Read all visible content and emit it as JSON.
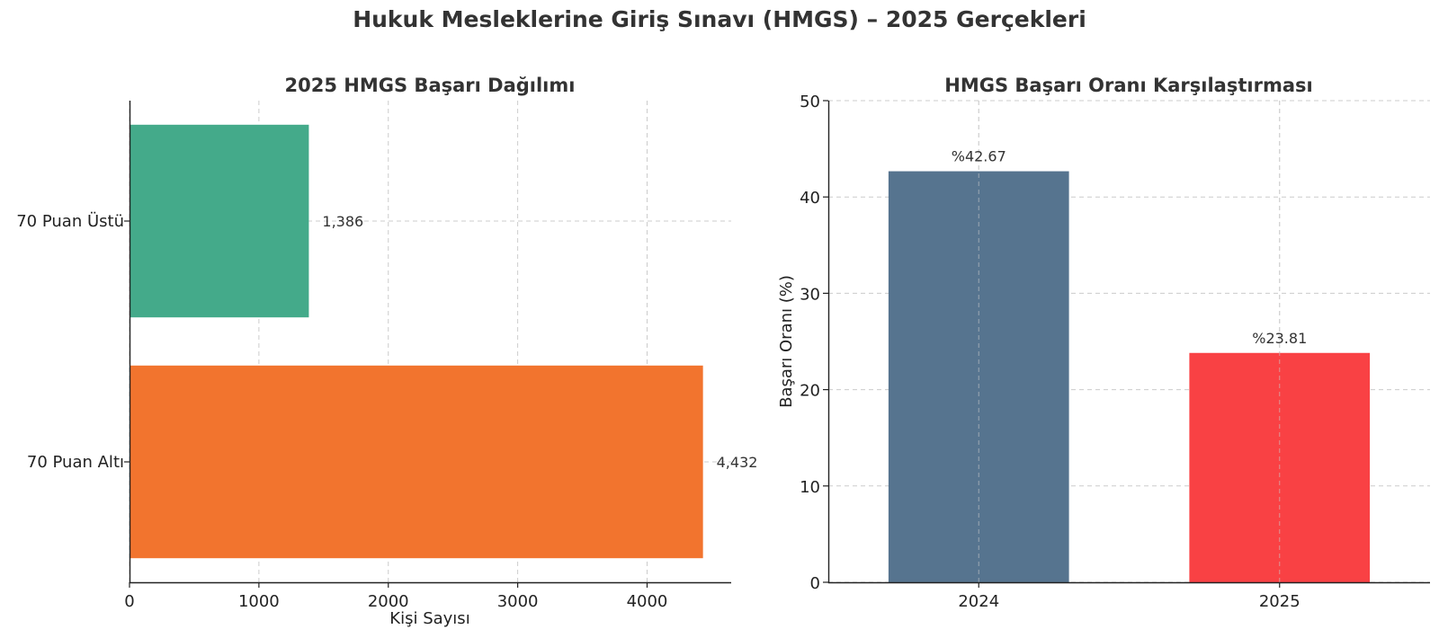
{
  "figure": {
    "title": "Hukuk Mesleklerine Giriş Sınavı (HMGS) – 2025 Gerçekleri"
  },
  "chart_data": [
    {
      "type": "bar",
      "orientation": "horizontal",
      "title": "2025 HMGS Başarı Dağılımı",
      "xlabel": "Kişi Sayısı",
      "ylabel": "",
      "categories": [
        "70 Puan Üstü",
        "70 Puan Altı"
      ],
      "values": [
        1386,
        4432
      ],
      "value_labels": [
        "1,386",
        "4,432"
      ],
      "colors": [
        "#44aa8a",
        "#f2742e"
      ],
      "xlim": [
        0,
        4650
      ],
      "xticks": [
        0,
        1000,
        2000,
        3000,
        4000
      ],
      "xtick_labels": [
        "0",
        "1000",
        "2000",
        "3000",
        "4000"
      ],
      "grid": true
    },
    {
      "type": "bar",
      "orientation": "vertical",
      "title": "HMGS Başarı Oranı Karşılaştırması",
      "xlabel": "",
      "ylabel": "Başarı Oranı (%)",
      "categories": [
        "2024",
        "2025"
      ],
      "values": [
        42.67,
        23.81
      ],
      "value_labels": [
        "%42.67",
        "%23.81"
      ],
      "colors": [
        "#56748f",
        "#f94144"
      ],
      "ylim": [
        0,
        50
      ],
      "yticks": [
        0,
        10,
        20,
        30,
        40,
        50
      ],
      "ytick_labels": [
        "0",
        "10",
        "20",
        "30",
        "40",
        "50"
      ],
      "grid": true
    }
  ]
}
